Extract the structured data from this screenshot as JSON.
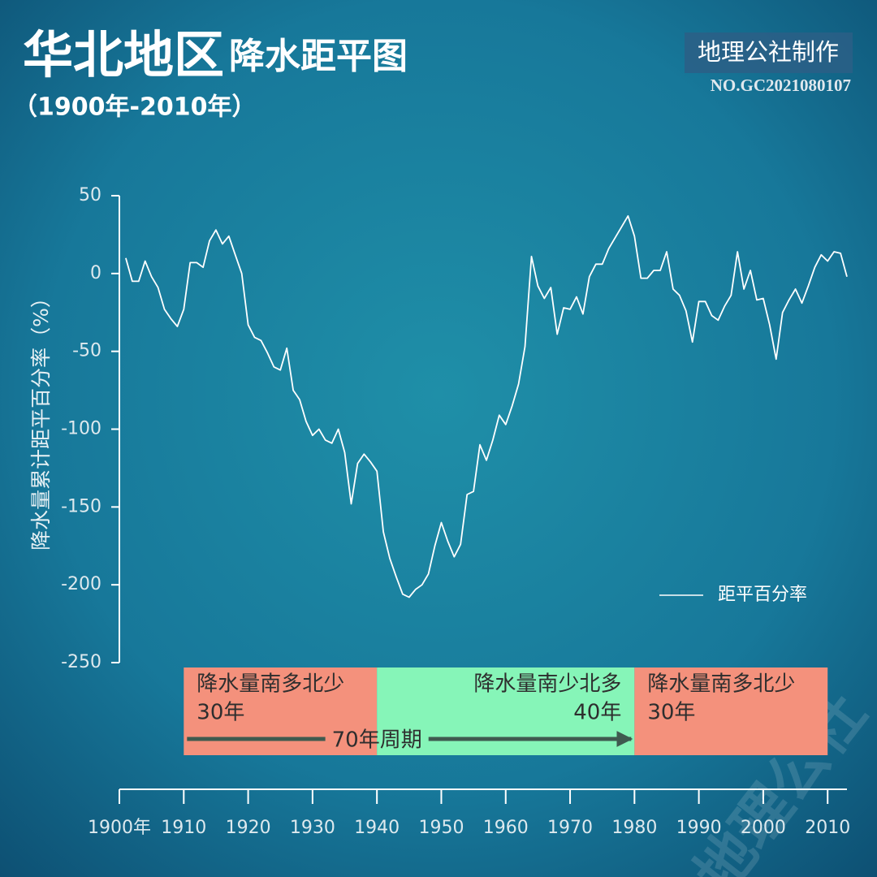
{
  "chart_data": {
    "type": "line",
    "title": "华北地区",
    "title_suffix": "降水距平图",
    "subtitle": "（1900年-2010年）",
    "credit": "地理公社制作",
    "serial": "NO.GC2021080107",
    "watermark": "地理公社",
    "y_label": "降水量累计距平百分率（%）",
    "xlim": [
      1900,
      2013
    ],
    "xticks": [
      {
        "value": 1900,
        "label": "1900年"
      },
      1910,
      1920,
      1930,
      1940,
      1950,
      1960,
      1970,
      1980,
      1990,
      2000,
      2010
    ],
    "ylim": [
      -250,
      50
    ],
    "yticks": [
      50,
      0,
      -50,
      -100,
      -150,
      -200,
      -250
    ],
    "legend": "right",
    "x": [
      1901,
      1902,
      1903,
      1904,
      1905,
      1906,
      1907,
      1908,
      1909,
      1910,
      1911,
      1912,
      1913,
      1914,
      1915,
      1916,
      1917,
      1918,
      1919,
      1920,
      1921,
      1922,
      1923,
      1924,
      1925,
      1926,
      1927,
      1928,
      1929,
      1930,
      1931,
      1932,
      1933,
      1934,
      1935,
      1936,
      1937,
      1938,
      1939,
      1940,
      1941,
      1942,
      1943,
      1944,
      1945,
      1946,
      1947,
      1948,
      1949,
      1950,
      1951,
      1952,
      1953,
      1954,
      1955,
      1956,
      1957,
      1958,
      1959,
      1960,
      1961,
      1962,
      1963,
      1964,
      1965,
      1966,
      1967,
      1968,
      1969,
      1970,
      1971,
      1972,
      1973,
      1974,
      1975,
      1976,
      1977,
      1978,
      1979,
      1980,
      1981,
      1982,
      1983,
      1984,
      1985,
      1986,
      1987,
      1988,
      1989,
      1990,
      1991,
      1992,
      1993,
      1994,
      1995,
      1996,
      1997,
      1998,
      1999,
      2000,
      2001,
      2002,
      2003,
      2004,
      2005,
      2006,
      2007,
      2008,
      2009,
      2010,
      2011,
      2012,
      2013
    ],
    "series": [
      {
        "name": "距平百分率",
        "color": "#ffffff",
        "values": [
          10,
          -5,
          -5,
          8,
          -2,
          -9,
          -23,
          -29,
          -34,
          -23,
          7,
          7,
          4,
          21,
          28,
          19,
          24,
          12,
          0,
          -33,
          -41,
          -43,
          -51,
          -60,
          -62,
          -48,
          -75,
          -81,
          -95,
          -104,
          -100,
          -107,
          -109,
          -100,
          -115,
          -148,
          -122,
          -116,
          -121,
          -127,
          -166,
          -183,
          -195,
          -206,
          -208,
          -203,
          -200,
          -193,
          -175,
          -160,
          -172,
          -182,
          -174,
          -142,
          -140,
          -110,
          -120,
          -107,
          -91,
          -97,
          -85,
          -71,
          -47,
          11,
          -8,
          -16,
          -9,
          -39,
          -22,
          -23,
          -15,
          -26,
          -2,
          6,
          6,
          16,
          23,
          30,
          37,
          24,
          -3,
          -3,
          2,
          2,
          14,
          -10,
          -14,
          -24,
          -44,
          -18,
          -18,
          -27,
          -30,
          -21,
          -14,
          14,
          -10,
          2,
          -17,
          -16,
          -33,
          -55,
          -25,
          -17,
          -10,
          -19,
          -8,
          4,
          12,
          8,
          14,
          13,
          -2
        ]
      }
    ],
    "periods": [
      {
        "start": 1910,
        "end": 1940,
        "label": "降水量南多北少",
        "years": "30年",
        "color": "#f4917c"
      },
      {
        "start": 1940,
        "end": 1980,
        "label": "降水量南少北多",
        "years": "40年",
        "color": "#86f5b8"
      },
      {
        "start": 1980,
        "end": 2010,
        "label": "降水量南多北少",
        "years": "30年",
        "color": "#f4917c"
      }
    ],
    "annotation": {
      "text": "70年周期",
      "start": 1910,
      "end": 1980,
      "color": "#3f5a4f"
    }
  }
}
